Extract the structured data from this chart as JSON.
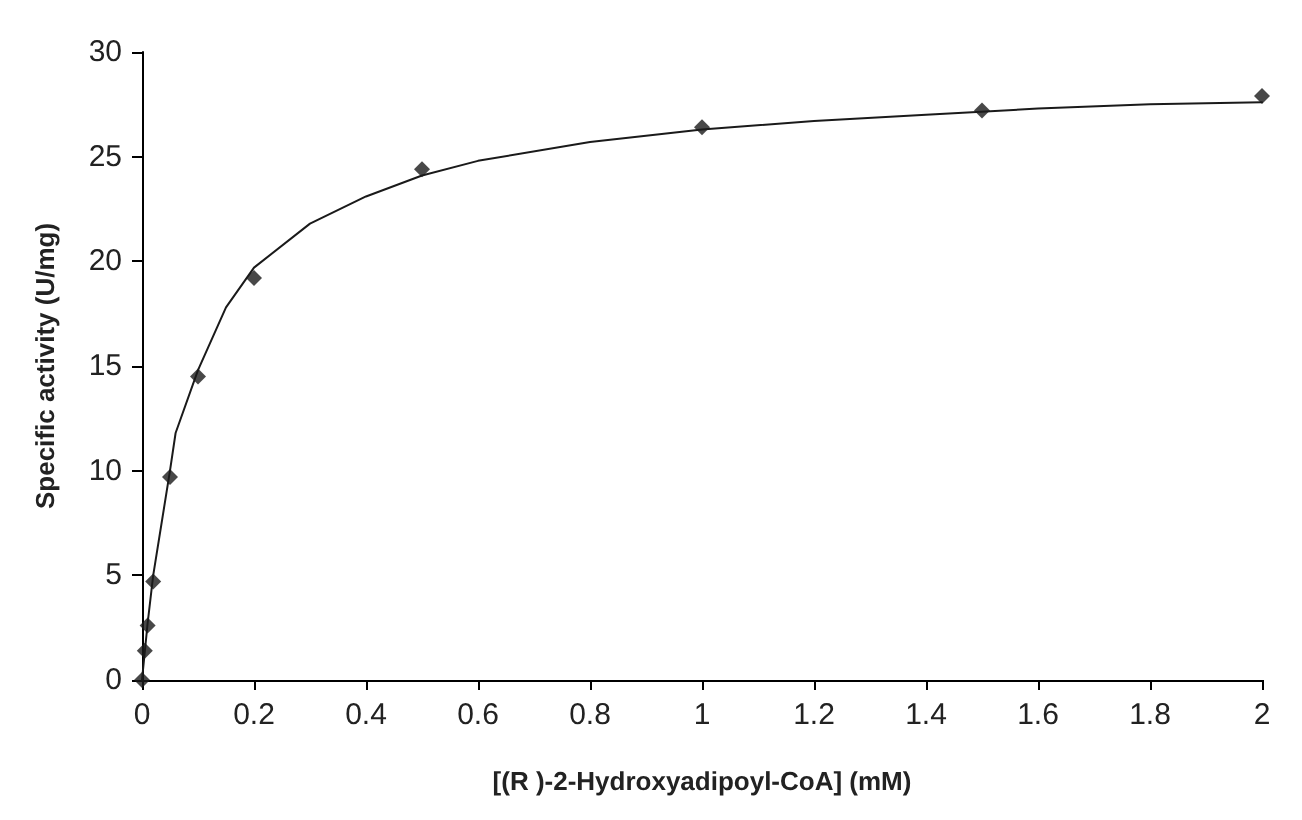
{
  "chart_data": {
    "type": "scatter",
    "xlabel": "[(R )-2-Hydroxyadipoyl-CoA] (mM)",
    "ylabel": "Specific activity (U/mg)",
    "series": [
      {
        "color": "#1a1a1a",
        "marker": "diamond",
        "x": [
          0,
          0.005,
          0.01,
          0.02,
          0.05,
          0.1,
          0.2,
          0.5,
          1,
          1.5,
          2
        ],
        "values": [
          0,
          1.4,
          2.6,
          4.7,
          9.7,
          14.5,
          19.2,
          24.4,
          26.4,
          27.2,
          27.9
        ]
      },
      {
        "type": "line",
        "color": "#1a1a1a",
        "marker": "none",
        "line_style": "solid",
        "x": [
          0,
          0.01,
          0.02,
          0.05,
          0.06,
          0.1,
          0.15,
          0.2,
          0.3,
          0.4,
          0.5,
          0.6,
          0.8,
          1,
          1.2,
          1.4,
          1.6,
          1.8,
          2
        ],
        "values": [
          0,
          2.7,
          5,
          10,
          11.8,
          14.8,
          17.8,
          19.7,
          21.8,
          23.1,
          24.1,
          24.8,
          25.7,
          26.3,
          26.7,
          27,
          27.3,
          27.5,
          27.6
        ]
      }
    ],
    "xlim": [
      0,
      2
    ],
    "xticks": [
      0,
      0.2,
      0.4,
      0.6,
      0.8,
      1,
      1.2,
      1.4,
      1.6,
      1.8,
      2
    ],
    "ylim": [
      0,
      30
    ],
    "yticks": [
      0,
      5,
      10,
      15,
      20,
      25,
      30
    ],
    "grid": false
  }
}
